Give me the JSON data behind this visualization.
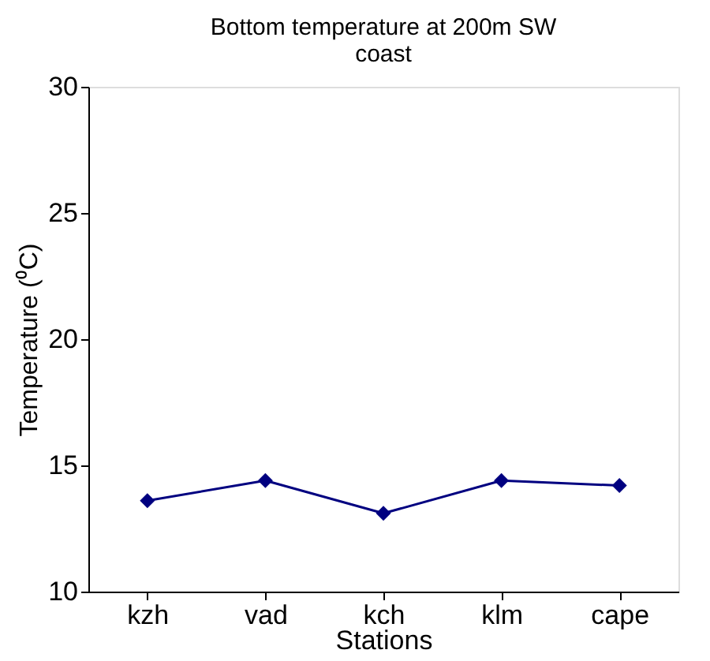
{
  "chart_data": {
    "type": "line",
    "title": "Bottom temperature  at 200m SW\ncoast",
    "xlabel": "Stations",
    "ylabel": "Temperature (⁰C)",
    "categories": [
      "kzh",
      "vad",
      "kch",
      "klm",
      "cape"
    ],
    "series": [
      {
        "color": "#000080",
        "values": [
          13.6,
          14.4,
          13.1,
          14.4,
          14.2
        ]
      }
    ],
    "ylim": [
      10,
      30
    ],
    "yticks": [
      10,
      15,
      20,
      25,
      30
    ],
    "grid": false,
    "legend": false,
    "marker": "diamond",
    "line_style": "solid"
  }
}
